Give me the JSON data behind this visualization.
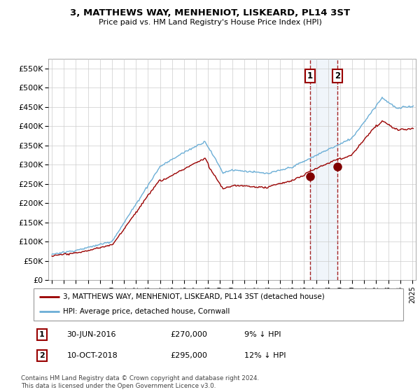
{
  "title": "3, MATTHEWS WAY, MENHENIOT, LISKEARD, PL14 3ST",
  "subtitle": "Price paid vs. HM Land Registry's House Price Index (HPI)",
  "ylim": [
    0,
    575000
  ],
  "yticks": [
    0,
    50000,
    100000,
    150000,
    200000,
    250000,
    300000,
    350000,
    400000,
    450000,
    500000,
    550000
  ],
  "ytick_labels": [
    "£0",
    "£50K",
    "£100K",
    "£150K",
    "£200K",
    "£250K",
    "£300K",
    "£350K",
    "£400K",
    "£450K",
    "£500K",
    "£550K"
  ],
  "hpi_color": "#6baed6",
  "price_color": "#990000",
  "marker_color": "#800000",
  "annotation_fill": "#c6dbef",
  "sale1_date": 2016.5,
  "sale1_price": 270000,
  "sale2_date": 2018.78,
  "sale2_price": 295000,
  "legend_line1": "3, MATTHEWS WAY, MENHENIOT, LISKEARD, PL14 3ST (detached house)",
  "legend_line2": "HPI: Average price, detached house, Cornwall",
  "table_row1": [
    "1",
    "30-JUN-2016",
    "£270,000",
    "9% ↓ HPI"
  ],
  "table_row2": [
    "2",
    "10-OCT-2018",
    "£295,000",
    "12% ↓ HPI"
  ],
  "footnote": "Contains HM Land Registry data © Crown copyright and database right 2024.\nThis data is licensed under the Open Government Licence v3.0.",
  "grid_color": "#cccccc",
  "xlim_start": 1994.7,
  "xlim_end": 2025.3
}
